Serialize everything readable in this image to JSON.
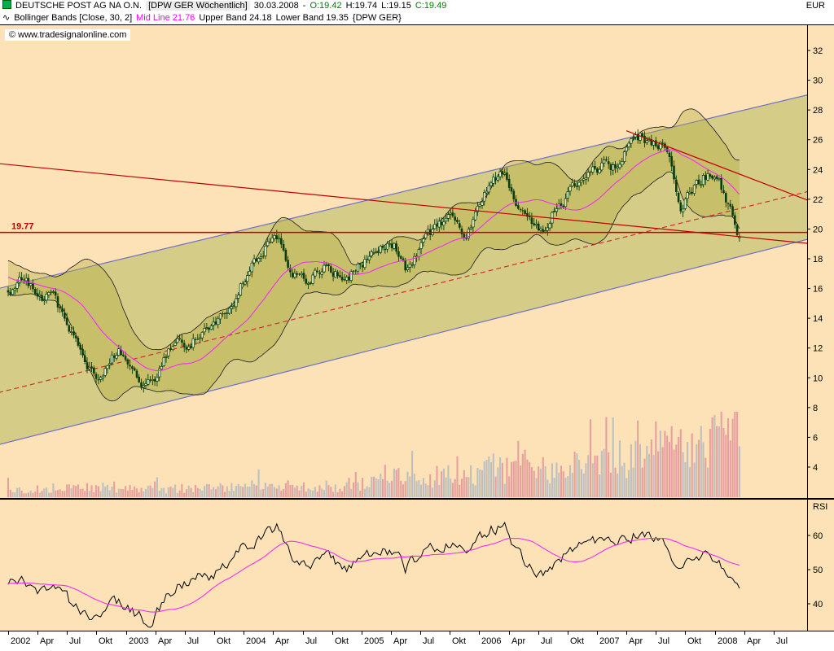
{
  "header": {
    "title": "DEUTSCHE POST AG NA O.N.",
    "symbol_timeframe": "[DPW GER  Wöchentlich]",
    "date": "30.03.2008",
    "separator": "-",
    "open": "O:19.42",
    "high": "H:19.74",
    "low": "L:19.15",
    "close": "C:19.49",
    "indicator": "Bollinger Bands [Close, 30, 2]",
    "indicator_mid": "Mid Line 21.76",
    "indicator_upper": "Upper Band 24.18",
    "indicator_lower": "Lower Band 19.35",
    "indicator_symbol": "{DPW GER}"
  },
  "watermark": "© www.tradesignalonline.com",
  "axes": {
    "price_unit": "EUR",
    "price_ticks": [
      32,
      30,
      28,
      26,
      24,
      22,
      20,
      18,
      16,
      14,
      12,
      10,
      8,
      6,
      4
    ],
    "rsi_label": "RSI",
    "rsi_ticks": [
      60,
      50,
      40
    ],
    "x_labels": [
      "2002",
      "Apr",
      "Jul",
      "Okt",
      "2003",
      "Apr",
      "Jul",
      "Okt",
      "2004",
      "Apr",
      "Jul",
      "Okt",
      "2005",
      "Apr",
      "Jul",
      "Okt",
      "2006",
      "Apr",
      "Jul",
      "Okt",
      "2007",
      "Apr",
      "Jul",
      "Okt",
      "2008",
      "Apr",
      "Jul"
    ],
    "x_label_months": [
      0,
      3,
      6,
      9,
      12,
      15,
      18,
      21,
      24,
      27,
      30,
      33,
      36,
      39,
      42,
      45,
      48,
      51,
      54,
      57,
      60,
      63,
      66,
      69,
      72,
      75,
      78
    ]
  },
  "levels": {
    "price_line_label": "19.77",
    "price_line_value": 19.77
  },
  "colors": {
    "background": "#FCE2B6",
    "candle": "#0A3D0A",
    "candle_up_fill": "#E8F0D8",
    "bollinger_fill": "rgba(180,170,60,0.38)",
    "bollinger_edge": "#1A1A1A",
    "mid_line": "#EE30EE",
    "channel_fill": "rgba(130,160,40,0.32)",
    "channel_line": "#7070C8",
    "red_line": "#C00000",
    "dashed_line": "#D03030",
    "volume_gray": "#BFBFBF",
    "volume_pink": "#E7A0A0",
    "rsi_line": "#000000",
    "rsi_ma": "#EE30EE"
  },
  "chart_data": [
    {
      "type": "candlestick",
      "title": "DEUTSCHE POST AG NA O.N. (DPW GER) weekly with Bollinger Bands, trend channel and volume",
      "x_start": "2002-01",
      "x_end": "2008-03",
      "x_axis_end": "2008-07",
      "ylim": [
        3,
        33
      ],
      "y_unit": "EUR",
      "monthly_closes": [
        15.9,
        16.6,
        16.2,
        15.3,
        15.5,
        14.3,
        12.9,
        11.6,
        10.3,
        9.8,
        11.4,
        11.7,
        10.9,
        9.9,
        9.5,
        10.6,
        11.8,
        12.6,
        12.3,
        13.2,
        12.8,
        13.7,
        14.3,
        16.0,
        16.9,
        18.2,
        19.1,
        19.5,
        17.8,
        16.8,
        16.4,
        17.3,
        17.7,
        17.0,
        16.6,
        17.5,
        17.9,
        18.7,
        19.0,
        18.8,
        17.4,
        18.3,
        19.4,
        19.9,
        20.7,
        21.0,
        19.5,
        20.6,
        22.5,
        23.5,
        23.8,
        22.3,
        21.2,
        20.4,
        19.9,
        21.1,
        21.7,
        22.6,
        23.3,
        23.8,
        24.2,
        24.0,
        24.9,
        25.7,
        26.2,
        25.6,
        25.8,
        24.1,
        21.5,
        22.4,
        23.3,
        23.8,
        23.1,
        21.6,
        19.49
      ],
      "last_week_ohlc": {
        "open": 19.42,
        "high": 19.74,
        "low": 19.15,
        "close": 19.49
      },
      "bollinger": {
        "source": "Close",
        "period": 30,
        "width": 2,
        "mid": 21.76,
        "upper": 24.18,
        "lower": 19.35
      },
      "horizontal_level": 19.77,
      "channel": {
        "lower": {
          "m1": -1,
          "p1": 5.5,
          "m2": 82,
          "p2": 19.4
        },
        "upper": {
          "m1": -1,
          "p1": 16.0,
          "m2": 82,
          "p2": 29.1
        }
      },
      "trendlines": [
        {
          "name": "long-downtrend",
          "style": "solid",
          "m1": -1,
          "p1": 24.4,
          "m2": 82,
          "p2": 19.0
        },
        {
          "name": "2007-downtrend",
          "style": "solid",
          "m1": 63,
          "p1": 26.6,
          "m2": 82,
          "p2": 21.8
        },
        {
          "name": "long-uptrend",
          "style": "dashed",
          "m1": -1,
          "p1": 9.0,
          "m2": 82,
          "p2": 22.6
        }
      ],
      "volume_profile_monthly": [
        0.12,
        0.12,
        0.13,
        0.12,
        0.12,
        0.13,
        0.15,
        0.14,
        0.16,
        0.15,
        0.13,
        0.12,
        0.13,
        0.14,
        0.13,
        0.12,
        0.13,
        0.14,
        0.13,
        0.13,
        0.14,
        0.15,
        0.14,
        0.15,
        0.18,
        0.17,
        0.2,
        0.22,
        0.18,
        0.16,
        0.15,
        0.17,
        0.18,
        0.17,
        0.16,
        0.18,
        0.22,
        0.24,
        0.28,
        0.3,
        0.35,
        0.3,
        0.28,
        0.32,
        0.38,
        0.35,
        0.3,
        0.28,
        0.4,
        0.45,
        0.42,
        0.48,
        0.55,
        0.5,
        0.45,
        0.42,
        0.45,
        0.5,
        0.52,
        0.48,
        0.55,
        0.6,
        0.65,
        0.6,
        0.7,
        0.85,
        0.75,
        0.9,
        0.8,
        0.7,
        0.75,
        0.85,
        0.95,
        0.85,
        0.9
      ]
    },
    {
      "type": "line",
      "title": "RSI",
      "ylim": [
        30,
        70
      ],
      "yticks": [
        40,
        50,
        60
      ],
      "monthly_values": [
        46,
        47,
        45,
        44,
        45,
        42,
        40,
        38,
        36,
        35,
        39,
        40,
        38,
        36,
        35,
        39,
        43,
        46,
        46,
        48,
        47,
        49,
        51,
        55,
        57,
        59,
        61,
        62,
        55,
        52,
        51,
        53,
        54,
        52,
        51,
        53,
        54,
        55,
        56,
        55,
        50,
        53,
        55,
        56,
        58,
        59,
        53,
        56,
        60,
        62,
        63,
        57,
        53,
        51,
        49,
        52,
        54,
        56,
        57,
        58,
        59,
        57,
        59,
        60,
        61,
        59,
        60,
        55,
        49,
        52,
        54,
        55,
        53,
        48,
        44
      ],
      "ma_period_weeks": 26
    }
  ]
}
